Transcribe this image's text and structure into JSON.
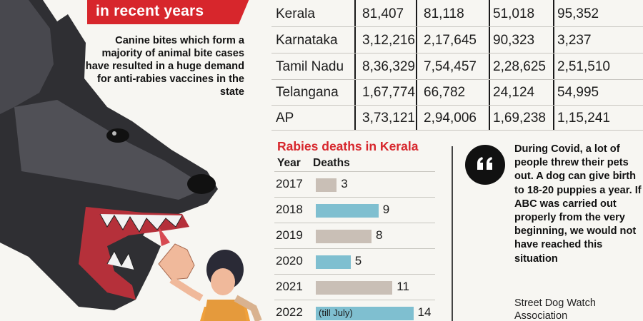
{
  "banner": {
    "title": "in recent years"
  },
  "side_note": "Canine bites which form a majority of animal bite cases have resulted in a huge demand for anti-rabies vaccines in the state",
  "bite_table": {
    "rows": [
      {
        "state": "Kerala",
        "values": [
          "81,407",
          "81,118",
          "51,018",
          "95,352"
        ]
      },
      {
        "state": "Karnataka",
        "values": [
          "3,12,216",
          "2,17,645",
          "90,323",
          "3,237"
        ]
      },
      {
        "state": "Tamil Nadu",
        "values": [
          "8,36,329",
          "7,54,457",
          "2,28,625",
          "2,51,510"
        ]
      },
      {
        "state": "Telangana",
        "values": [
          "1,67,774",
          "66,782",
          "24,124",
          "54,995"
        ]
      },
      {
        "state": "AP",
        "values": [
          "3,73,121",
          "2,94,006",
          "1,69,238",
          "1,15,241"
        ]
      }
    ]
  },
  "chart_data": {
    "type": "bar",
    "title": "Rabies deaths in Kerala",
    "xlabel": "Year",
    "ylabel": "Deaths",
    "categories": [
      "2017",
      "2018",
      "2019",
      "2020",
      "2021",
      "2022"
    ],
    "values": [
      3,
      9,
      8,
      5,
      11,
      14
    ],
    "annotations": {
      "2022": "(till July)"
    },
    "colors": [
      "#c9bfb6",
      "#7fbfd0",
      "#c9bfb6",
      "#7fbfd0",
      "#c9bfb6",
      "#7fbfd0"
    ]
  },
  "quote": {
    "text": "During Covid, a lot of people threw their pets out. A dog can give birth to 18-20 puppies a year. If ABC was carried out properly from the very beginning, we would not have reached this situation",
    "source": "Street Dog Watch Association"
  },
  "colors": {
    "accent": "#d7262c",
    "bar_a": "#c9bfb6",
    "bar_b": "#7fbfd0"
  }
}
